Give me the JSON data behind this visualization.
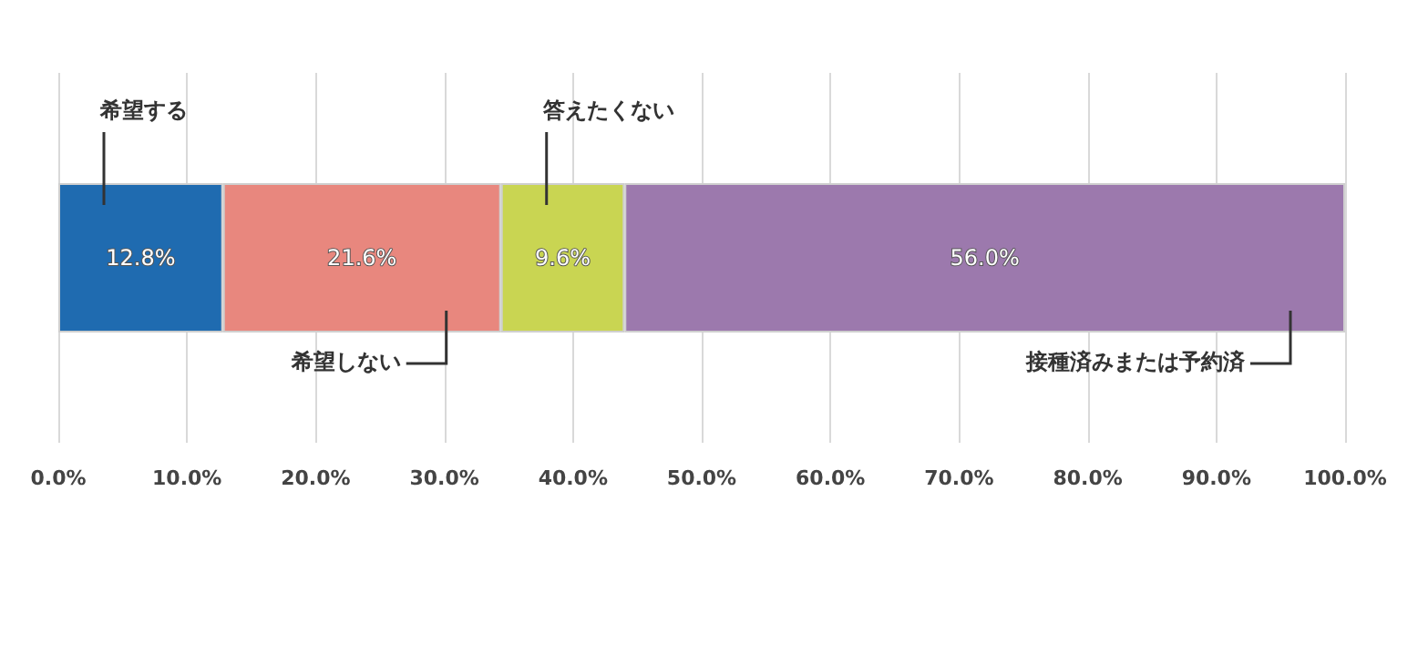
{
  "chart_data": {
    "type": "bar",
    "orientation": "horizontal",
    "stacked": true,
    "categories": [
      null
    ],
    "series": [
      {
        "name": "希望する",
        "color": "#1f6bb0",
        "values": [
          12.8
        ],
        "value_labels": [
          "12.8%"
        ]
      },
      {
        "name": "希望しない",
        "color": "#e8877e",
        "values": [
          21.6
        ],
        "value_labels": [
          "21.6%"
        ]
      },
      {
        "name": "答えたくない",
        "color": "#c9d552",
        "values": [
          9.6
        ],
        "value_labels": [
          "9.6%"
        ]
      },
      {
        "name": "接種済みまたは予約済",
        "color": "#9c79ad",
        "values": [
          56.0
        ],
        "value_labels": [
          "56.0%"
        ]
      }
    ],
    "xlim": [
      0,
      100
    ],
    "xticks": [
      {
        "value": 0,
        "label": "0.0%"
      },
      {
        "value": 10,
        "label": "10.0%"
      },
      {
        "value": 20,
        "label": "20.0%"
      },
      {
        "value": 30,
        "label": "30.0%"
      },
      {
        "value": 40,
        "label": "40.0%"
      },
      {
        "value": 50,
        "label": "50.0%"
      },
      {
        "value": 60,
        "label": "60.0%"
      },
      {
        "value": 70,
        "label": "70.0%"
      },
      {
        "value": 80,
        "label": "80.0%"
      },
      {
        "value": 90,
        "label": "90.0%"
      },
      {
        "value": 100,
        "label": "100.0%"
      }
    ],
    "grid": "x",
    "legend": false
  }
}
